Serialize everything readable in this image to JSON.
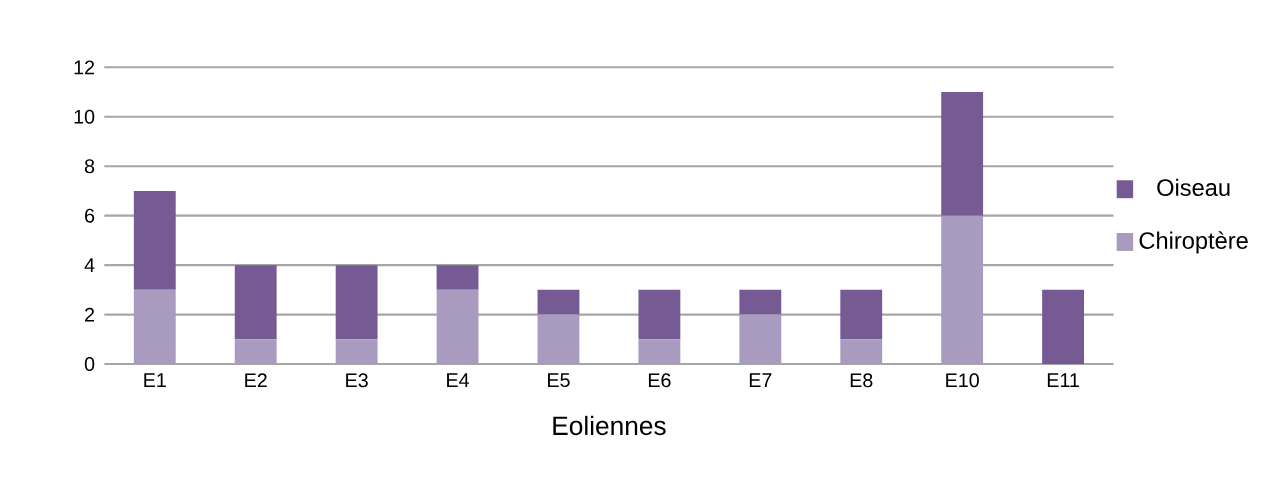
{
  "chart_data": {
    "type": "bar",
    "stacked": true,
    "xlabel": "Eoliennes",
    "categories": [
      "E1",
      "E2",
      "E3",
      "E4",
      "E5",
      "E6",
      "E7",
      "E8",
      "E10",
      "E11"
    ],
    "series": [
      {
        "name": "Chiroptère",
        "color": "#a99bc0",
        "values": [
          3,
          1,
          1,
          3,
          2,
          1,
          2,
          1,
          6,
          0
        ]
      },
      {
        "name": "Oiseau",
        "color": "#765a94",
        "values": [
          4,
          3,
          3,
          1,
          1,
          2,
          1,
          2,
          5,
          3
        ]
      }
    ],
    "ylim": [
      0,
      12
    ],
    "yticks": [
      0,
      2,
      4,
      6,
      8,
      10,
      12
    ],
    "grid": "y",
    "legend": "right"
  }
}
